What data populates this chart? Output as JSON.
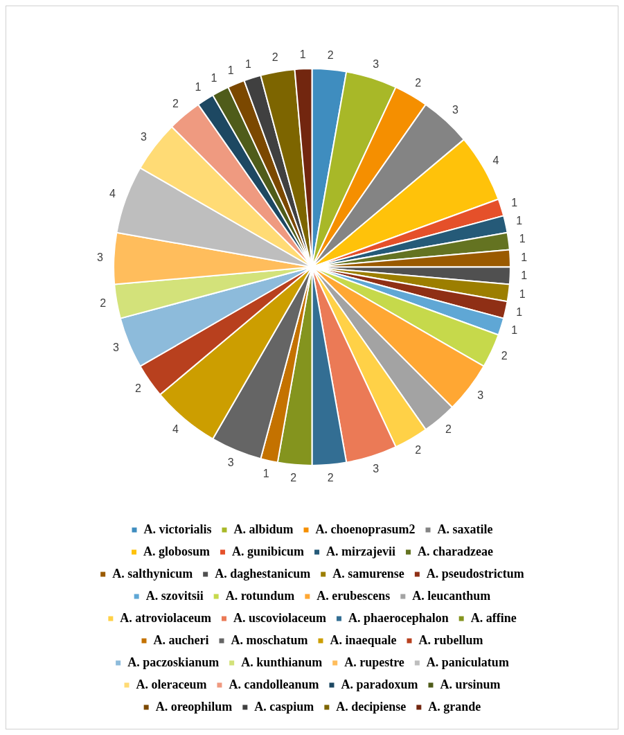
{
  "chart_data": {
    "type": "pie",
    "categories": [
      "A. victorialis",
      "A. albidum",
      "A. choenoprasum2",
      "A. saxatile",
      "A. globosum",
      "A. gunibicum",
      "A. mirzajevii",
      "A. charadzeae",
      "A. salthynicum",
      "A. daghestanicum",
      "A. samurense",
      "A. pseudostrictum",
      "A. szovitsii",
      "A. rotundum",
      "A. erubescens",
      "A. leucanthum",
      "A. atroviolaceum",
      "A. uscoviolaceum",
      "A. phaerocephalon",
      "A. affine",
      "A. aucheri",
      "A. moschatum",
      "A. inaequale",
      "A. rubellum",
      "A. paczoskianum",
      "A. kunthianum",
      "A. rupestre",
      "A. paniculatum",
      "A. oleraceum",
      "A. candolleanum",
      "A. paradoxum",
      "A. ursinum",
      "A. oreophilum",
      "A. caspium",
      "A. decipiense",
      "A. grande"
    ],
    "values": [
      2,
      3,
      2,
      3,
      4,
      1,
      1,
      1,
      1,
      1,
      1,
      1,
      1,
      2,
      3,
      2,
      2,
      3,
      2,
      2,
      1,
      3,
      4,
      2,
      3,
      2,
      3,
      4,
      3,
      2,
      1,
      1,
      1,
      1,
      2,
      1
    ],
    "colors": [
      "#3f8dbf",
      "#a8b828",
      "#f58f00",
      "#848484",
      "#ffc20a",
      "#e5502a",
      "#255a78",
      "#647321",
      "#9a5a00",
      "#505050",
      "#9c7e00",
      "#8f2f15",
      "#5fa7d5",
      "#c6d94b",
      "#ffa733",
      "#a3a3a3",
      "#ffd147",
      "#eb7a56",
      "#336e93",
      "#84941e",
      "#c47200",
      "#656565",
      "#cc9e00",
      "#b8401e",
      "#8dbbdb",
      "#d3e27a",
      "#ffbd5c",
      "#bebebe",
      "#ffdb75",
      "#ef9a80",
      "#1d4862",
      "#4f5c1a",
      "#7b4800",
      "#404040",
      "#7d6500",
      "#72260f"
    ],
    "data_labels": true,
    "legend": "bottom"
  }
}
